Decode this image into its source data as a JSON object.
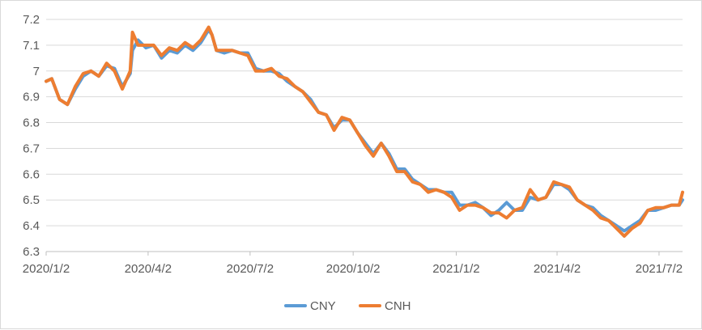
{
  "chart_data": {
    "type": "line",
    "title": "",
    "xlabel": "",
    "ylabel": "",
    "ylim": [
      6.3,
      7.2
    ],
    "y_ticks": [
      6.3,
      6.4,
      6.5,
      6.6,
      6.7,
      6.8,
      6.9,
      7,
      7.1,
      7.2
    ],
    "y_tick_labels": [
      "6.3",
      "6.4",
      "6.5",
      "6.6",
      "6.7",
      "6.8",
      "6.9",
      "7",
      "7.1",
      "7.2"
    ],
    "x_range": [
      "2020-01-02",
      "2021-07-23"
    ],
    "x_ticks": [
      "2020-01-02",
      "2020-04-02",
      "2020-07-02",
      "2020-10-02",
      "2021-01-02",
      "2021-04-02",
      "2021-07-02"
    ],
    "x_tick_labels": [
      "2020/1/2",
      "2020/4/2",
      "2020/7/2",
      "2020/10/2",
      "2021/1/2",
      "2021/4/2",
      "2021/7/2"
    ],
    "grid": true,
    "legend_position": "bottom",
    "series": [
      {
        "name": "CNY",
        "color": "#5b9bd5",
        "points": [
          [
            "2020-01-02",
            6.96
          ],
          [
            "2020-01-07",
            6.97
          ],
          [
            "2020-01-14",
            6.89
          ],
          [
            "2020-01-21",
            6.87
          ],
          [
            "2020-01-28",
            6.93
          ],
          [
            "2020-02-04",
            6.98
          ],
          [
            "2020-02-11",
            7.0
          ],
          [
            "2020-02-18",
            6.98
          ],
          [
            "2020-02-25",
            7.02
          ],
          [
            "2020-03-03",
            7.01
          ],
          [
            "2020-03-10",
            6.94
          ],
          [
            "2020-03-17",
            6.99
          ],
          [
            "2020-03-19",
            7.08
          ],
          [
            "2020-03-24",
            7.12
          ],
          [
            "2020-03-31",
            7.09
          ],
          [
            "2020-04-07",
            7.1
          ],
          [
            "2020-04-14",
            7.05
          ],
          [
            "2020-04-21",
            7.08
          ],
          [
            "2020-04-28",
            7.07
          ],
          [
            "2020-05-05",
            7.1
          ],
          [
            "2020-05-12",
            7.08
          ],
          [
            "2020-05-19",
            7.11
          ],
          [
            "2020-05-26",
            7.16
          ],
          [
            "2020-05-29",
            7.14
          ],
          [
            "2020-06-02",
            7.08
          ],
          [
            "2020-06-09",
            7.07
          ],
          [
            "2020-06-16",
            7.08
          ],
          [
            "2020-06-23",
            7.07
          ],
          [
            "2020-06-30",
            7.07
          ],
          [
            "2020-07-07",
            7.01
          ],
          [
            "2020-07-14",
            7.0
          ],
          [
            "2020-07-21",
            7.0
          ],
          [
            "2020-07-28",
            6.99
          ],
          [
            "2020-08-04",
            6.96
          ],
          [
            "2020-08-11",
            6.94
          ],
          [
            "2020-08-18",
            6.92
          ],
          [
            "2020-08-25",
            6.89
          ],
          [
            "2020-09-01",
            6.84
          ],
          [
            "2020-09-08",
            6.83
          ],
          [
            "2020-09-15",
            6.78
          ],
          [
            "2020-09-22",
            6.81
          ],
          [
            "2020-09-29",
            6.81
          ],
          [
            "2020-10-06",
            6.76
          ],
          [
            "2020-10-13",
            6.72
          ],
          [
            "2020-10-20",
            6.68
          ],
          [
            "2020-10-27",
            6.72
          ],
          [
            "2020-11-03",
            6.68
          ],
          [
            "2020-11-10",
            6.62
          ],
          [
            "2020-11-17",
            6.62
          ],
          [
            "2020-11-24",
            6.58
          ],
          [
            "2020-12-01",
            6.56
          ],
          [
            "2020-12-08",
            6.54
          ],
          [
            "2020-12-15",
            6.54
          ],
          [
            "2020-12-22",
            6.53
          ],
          [
            "2020-12-29",
            6.53
          ],
          [
            "2021-01-05",
            6.48
          ],
          [
            "2021-01-12",
            6.48
          ],
          [
            "2021-01-19",
            6.49
          ],
          [
            "2021-01-26",
            6.47
          ],
          [
            "2021-02-02",
            6.44
          ],
          [
            "2021-02-09",
            6.46
          ],
          [
            "2021-02-16",
            6.49
          ],
          [
            "2021-02-23",
            6.46
          ],
          [
            "2021-03-02",
            6.46
          ],
          [
            "2021-03-09",
            6.51
          ],
          [
            "2021-03-16",
            6.5
          ],
          [
            "2021-03-23",
            6.51
          ],
          [
            "2021-03-30",
            6.56
          ],
          [
            "2021-04-06",
            6.56
          ],
          [
            "2021-04-13",
            6.54
          ],
          [
            "2021-04-20",
            6.5
          ],
          [
            "2021-04-27",
            6.48
          ],
          [
            "2021-05-04",
            6.47
          ],
          [
            "2021-05-11",
            6.44
          ],
          [
            "2021-05-18",
            6.42
          ],
          [
            "2021-05-25",
            6.4
          ],
          [
            "2021-06-01",
            6.38
          ],
          [
            "2021-06-08",
            6.4
          ],
          [
            "2021-06-15",
            6.42
          ],
          [
            "2021-06-22",
            6.46
          ],
          [
            "2021-06-29",
            6.46
          ],
          [
            "2021-07-06",
            6.47
          ],
          [
            "2021-07-13",
            6.48
          ],
          [
            "2021-07-20",
            6.48
          ],
          [
            "2021-07-23",
            6.5
          ]
        ]
      },
      {
        "name": "CNH",
        "color": "#ed7d31",
        "points": [
          [
            "2020-01-02",
            6.96
          ],
          [
            "2020-01-07",
            6.97
          ],
          [
            "2020-01-14",
            6.89
          ],
          [
            "2020-01-21",
            6.87
          ],
          [
            "2020-01-28",
            6.94
          ],
          [
            "2020-02-04",
            6.99
          ],
          [
            "2020-02-11",
            7.0
          ],
          [
            "2020-02-18",
            6.98
          ],
          [
            "2020-02-25",
            7.03
          ],
          [
            "2020-03-03",
            7.0
          ],
          [
            "2020-03-10",
            6.93
          ],
          [
            "2020-03-17",
            7.0
          ],
          [
            "2020-03-19",
            7.15
          ],
          [
            "2020-03-24",
            7.1
          ],
          [
            "2020-03-31",
            7.1
          ],
          [
            "2020-04-07",
            7.1
          ],
          [
            "2020-04-14",
            7.06
          ],
          [
            "2020-04-21",
            7.09
          ],
          [
            "2020-04-28",
            7.08
          ],
          [
            "2020-05-05",
            7.11
          ],
          [
            "2020-05-12",
            7.09
          ],
          [
            "2020-05-19",
            7.12
          ],
          [
            "2020-05-26",
            7.17
          ],
          [
            "2020-05-29",
            7.14
          ],
          [
            "2020-06-02",
            7.08
          ],
          [
            "2020-06-09",
            7.08
          ],
          [
            "2020-06-16",
            7.08
          ],
          [
            "2020-06-23",
            7.07
          ],
          [
            "2020-06-30",
            7.06
          ],
          [
            "2020-07-07",
            7.0
          ],
          [
            "2020-07-14",
            7.0
          ],
          [
            "2020-07-21",
            7.01
          ],
          [
            "2020-07-28",
            6.98
          ],
          [
            "2020-08-04",
            6.97
          ],
          [
            "2020-08-11",
            6.94
          ],
          [
            "2020-08-18",
            6.92
          ],
          [
            "2020-08-25",
            6.88
          ],
          [
            "2020-09-01",
            6.84
          ],
          [
            "2020-09-08",
            6.83
          ],
          [
            "2020-09-15",
            6.77
          ],
          [
            "2020-09-22",
            6.82
          ],
          [
            "2020-09-29",
            6.81
          ],
          [
            "2020-10-06",
            6.76
          ],
          [
            "2020-10-13",
            6.71
          ],
          [
            "2020-10-20",
            6.67
          ],
          [
            "2020-10-27",
            6.72
          ],
          [
            "2020-11-03",
            6.67
          ],
          [
            "2020-11-10",
            6.61
          ],
          [
            "2020-11-17",
            6.61
          ],
          [
            "2020-11-24",
            6.57
          ],
          [
            "2020-12-01",
            6.56
          ],
          [
            "2020-12-08",
            6.53
          ],
          [
            "2020-12-15",
            6.54
          ],
          [
            "2020-12-22",
            6.53
          ],
          [
            "2020-12-29",
            6.51
          ],
          [
            "2021-01-05",
            6.46
          ],
          [
            "2021-01-12",
            6.48
          ],
          [
            "2021-01-19",
            6.48
          ],
          [
            "2021-01-26",
            6.47
          ],
          [
            "2021-02-02",
            6.45
          ],
          [
            "2021-02-09",
            6.45
          ],
          [
            "2021-02-16",
            6.43
          ],
          [
            "2021-02-23",
            6.46
          ],
          [
            "2021-03-02",
            6.47
          ],
          [
            "2021-03-09",
            6.54
          ],
          [
            "2021-03-16",
            6.5
          ],
          [
            "2021-03-23",
            6.51
          ],
          [
            "2021-03-30",
            6.57
          ],
          [
            "2021-04-06",
            6.56
          ],
          [
            "2021-04-13",
            6.55
          ],
          [
            "2021-04-20",
            6.5
          ],
          [
            "2021-04-27",
            6.48
          ],
          [
            "2021-05-04",
            6.46
          ],
          [
            "2021-05-11",
            6.43
          ],
          [
            "2021-05-18",
            6.42
          ],
          [
            "2021-05-25",
            6.39
          ],
          [
            "2021-06-01",
            6.36
          ],
          [
            "2021-06-08",
            6.39
          ],
          [
            "2021-06-15",
            6.41
          ],
          [
            "2021-06-22",
            6.46
          ],
          [
            "2021-06-29",
            6.47
          ],
          [
            "2021-07-06",
            6.47
          ],
          [
            "2021-07-13",
            6.48
          ],
          [
            "2021-07-20",
            6.48
          ],
          [
            "2021-07-23",
            6.53
          ]
        ]
      }
    ]
  }
}
